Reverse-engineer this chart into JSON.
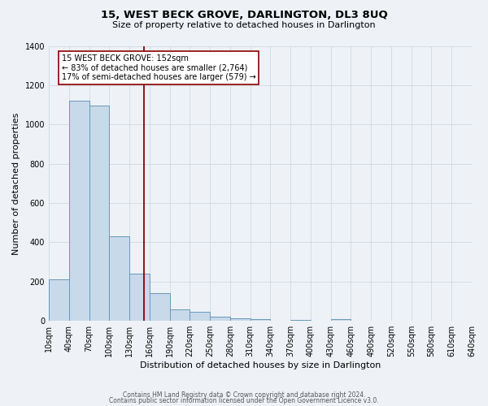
{
  "title": "15, WEST BECK GROVE, DARLINGTON, DL3 8UQ",
  "subtitle": "Size of property relative to detached houses in Darlington",
  "xlabel": "Distribution of detached houses by size in Darlington",
  "ylabel": "Number of detached properties",
  "footnote1": "Contains HM Land Registry data © Crown copyright and database right 2024.",
  "footnote2": "Contains public sector information licensed under the Open Government Licence v3.0.",
  "bin_edges": [
    10,
    40,
    70,
    100,
    130,
    160,
    190,
    220,
    250,
    280,
    310,
    340,
    370,
    400,
    430,
    460,
    490,
    520,
    550,
    580,
    610
  ],
  "bar_heights": [
    210,
    1120,
    1095,
    430,
    240,
    140,
    60,
    45,
    20,
    15,
    10,
    0,
    5,
    0,
    10,
    0,
    0,
    0,
    0,
    0
  ],
  "bar_color": "#c8d9ea",
  "bar_edge_color": "#6699bb",
  "property_size": 152,
  "vline_color": "#8b0000",
  "annotation_text": "15 WEST BECK GROVE: 152sqm\n← 83% of detached houses are smaller (2,764)\n17% of semi-detached houses are larger (579) →",
  "annotation_box_color": "#ffffff",
  "annotation_box_edge": "#8b0000",
  "ylim": [
    0,
    1400
  ],
  "yticks": [
    0,
    200,
    400,
    600,
    800,
    1000,
    1200,
    1400
  ],
  "grid_color": "#d0d8e0",
  "bg_color": "#eef2f7",
  "title_fontsize": 9.5,
  "subtitle_fontsize": 8,
  "axis_label_fontsize": 8,
  "tick_fontsize": 7,
  "annotation_fontsize": 7,
  "footnote_fontsize": 5.5
}
